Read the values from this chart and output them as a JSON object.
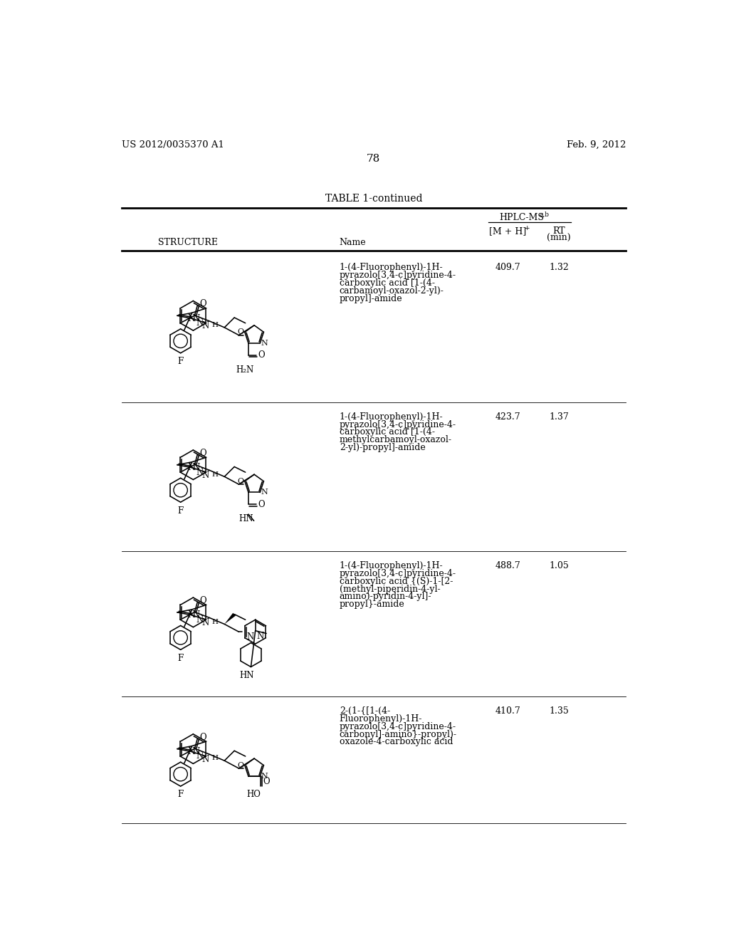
{
  "background_color": "#ffffff",
  "header_left": "US 2012/0035370 A1",
  "header_right": "Feb. 9, 2012",
  "page_number": "78",
  "table_title": "TABLE 1-continued",
  "rows": [
    {
      "mh_val": "409.7",
      "rt_val": "1.32",
      "name_lines": [
        "1-(4-Fluorophenyl)-1H-",
        "pyrazolo[3,4-c]pyridine-4-",
        "carboxylic acid [1-(4-",
        "carbamoyl-oxazol-2-yl)-",
        "propyl]-amide"
      ]
    },
    {
      "mh_val": "423.7",
      "rt_val": "1.37",
      "name_lines": [
        "1-(4-Fluorophenyl)-1H-",
        "pyrazolo[3,4-c]pyridine-4-",
        "carboxylic acid [1-(4-",
        "methylcarbamoyl-oxazol-",
        "2-yl)-propyl]-amide"
      ]
    },
    {
      "mh_val": "488.7",
      "rt_val": "1.05",
      "name_lines": [
        "1-(4-Fluorophenyl)-1H-",
        "pyrazolo[3,4-c]pyridine-4-",
        "carboxylic acid {(S)-1-[2-",
        "(methyl-piperidin-4-yl-",
        "amino)-pyridin-4-yl]-",
        "propyl}-amide"
      ]
    },
    {
      "mh_val": "410.7",
      "rt_val": "1.35",
      "name_lines": [
        "2-(1-{[1-(4-",
        "Fluorophenyl)-1H-",
        "pyrazolo[3,4-c]pyridine-4-",
        "carbonyl]-amino}-propyl)-",
        "oxazole-4-carboxylic acid"
      ]
    }
  ]
}
